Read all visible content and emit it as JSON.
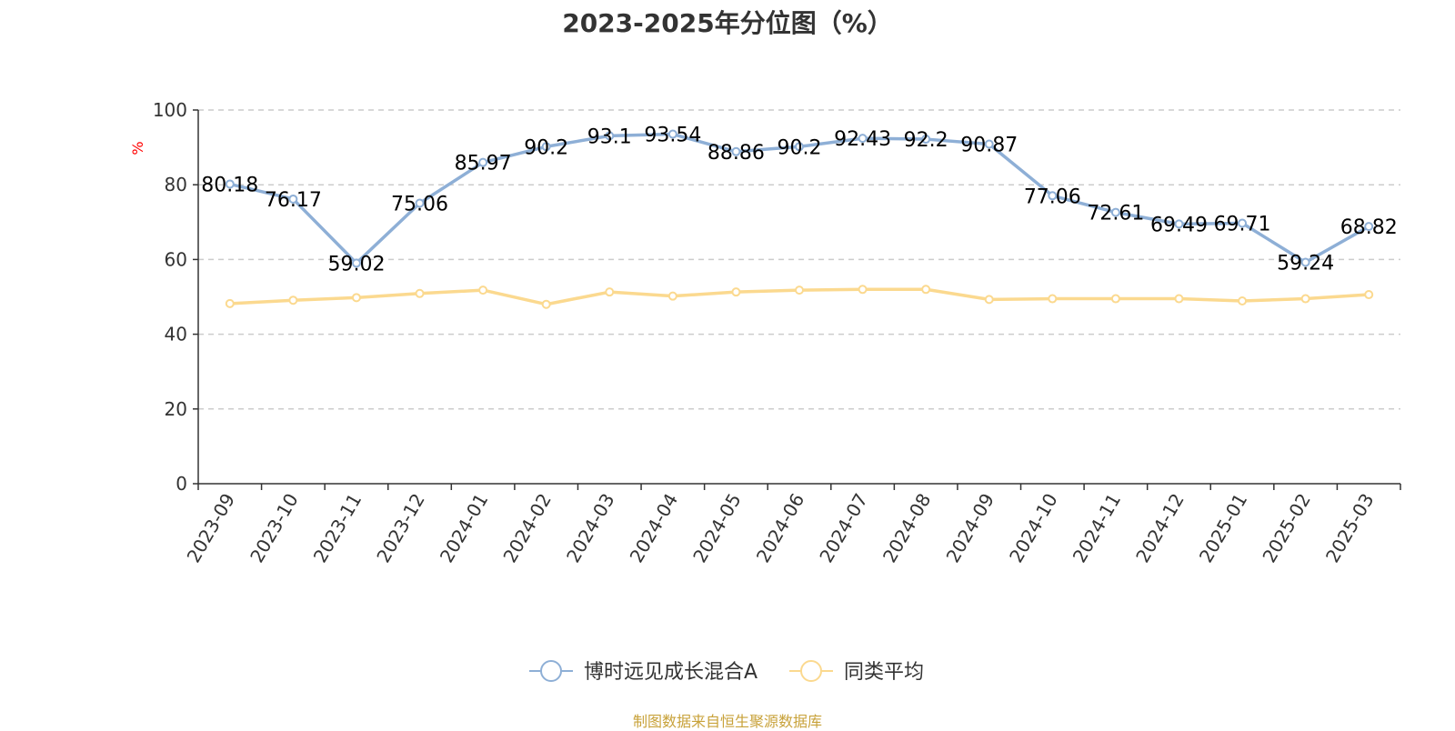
{
  "title": "2023-2025年分位图（%）",
  "source": "制图数据来自恒生聚源数据库",
  "chart_data": {
    "type": "line",
    "title": "2023-2025年分位图（%）",
    "ylabel": "%",
    "ylim": [
      0,
      100
    ],
    "yticks": [
      0,
      20,
      40,
      60,
      80,
      100
    ],
    "grid": true,
    "legend_position": "bottom",
    "categories": [
      "2023-09",
      "2023-10",
      "2023-11",
      "2023-12",
      "2024-01",
      "2024-02",
      "2024-03",
      "2024-04",
      "2024-05",
      "2024-06",
      "2024-07",
      "2024-08",
      "2024-09",
      "2024-10",
      "2024-11",
      "2024-12",
      "2025-01",
      "2025-02",
      "2025-03"
    ],
    "series": [
      {
        "name": "博时远见成长混合A",
        "color": "#8eafd6",
        "show_labels": true,
        "values": [
          80.18,
          76.17,
          59.02,
          75.06,
          85.97,
          90.2,
          93.1,
          93.54,
          88.86,
          90.2,
          92.43,
          92.2,
          90.87,
          77.06,
          72.61,
          69.49,
          69.71,
          59.24,
          68.82
        ],
        "labels": [
          "80.18",
          "76.17",
          "59.02",
          "75.06",
          "85.97",
          "90.2",
          "93.1",
          "93.54",
          "88.86",
          "90.2",
          "92.43",
          "92.2",
          "90.87",
          "77.06",
          "72.61",
          "69.49",
          "69.71",
          "59.24",
          "68.82"
        ]
      },
      {
        "name": "同类平均",
        "color": "#fbd98f",
        "show_labels": false,
        "values": [
          48.2,
          49.1,
          49.8,
          50.9,
          51.8,
          48.0,
          51.3,
          50.2,
          51.3,
          51.8,
          52.0,
          52.0,
          49.3,
          49.5,
          49.5,
          49.5,
          48.9,
          49.5,
          50.6
        ]
      }
    ]
  }
}
